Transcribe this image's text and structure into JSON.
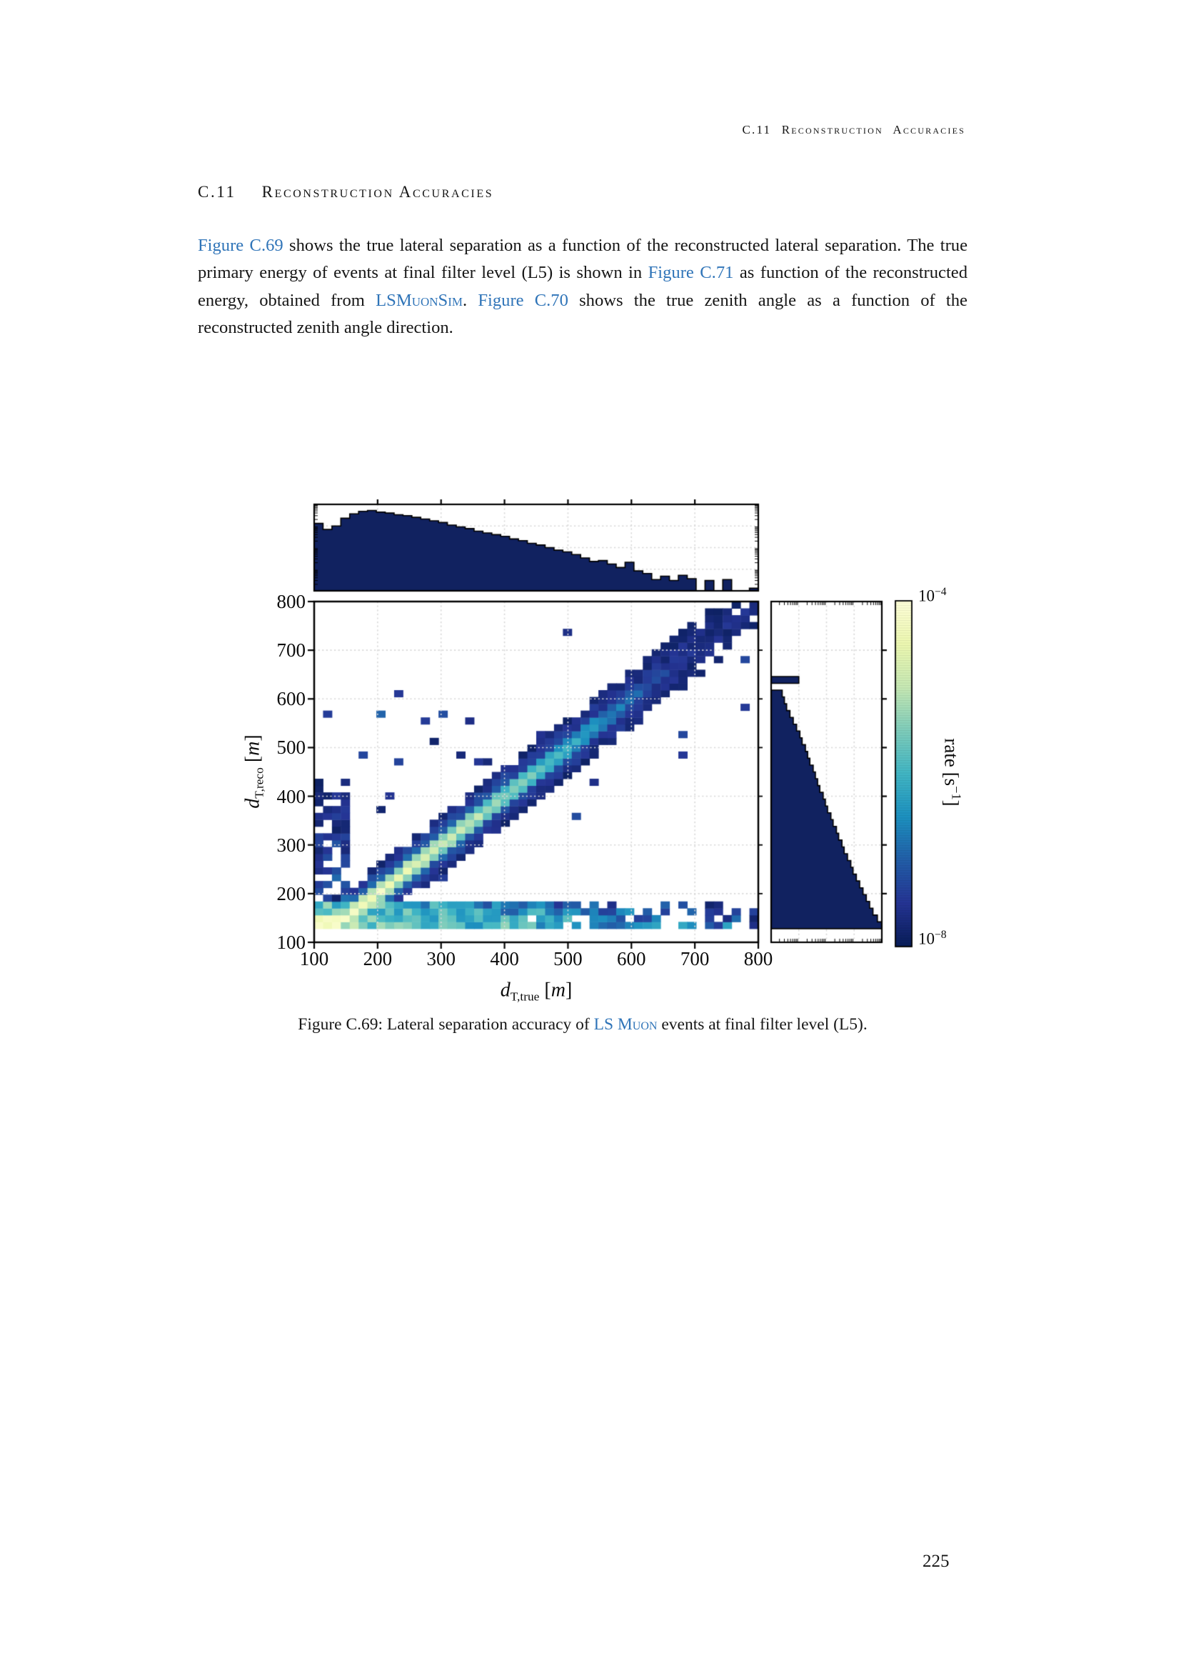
{
  "page": {
    "number": "225"
  },
  "running_header": {
    "text": "C.11 Reconstruction Accuracies"
  },
  "heading": {
    "number": "C.11",
    "title": "Reconstruction Accuracies"
  },
  "paragraph": {
    "segments": [
      {
        "text": "Figure C.69",
        "link": true,
        "smallcaps": false
      },
      {
        "text": " shows the true lateral separation as a function of the reconstructed lateral separation. The true primary energy of events at final filter level (L5) is shown in ",
        "link": false,
        "smallcaps": false
      },
      {
        "text": "Figure C.71",
        "link": true,
        "smallcaps": false
      },
      {
        "text": " as function of the reconstructed energy, obtained from ",
        "link": false,
        "smallcaps": false
      },
      {
        "text": "LSMuonSim",
        "link": true,
        "smallcaps": true
      },
      {
        "text": ". ",
        "link": false,
        "smallcaps": false
      },
      {
        "text": "Figure C.70",
        "link": true,
        "smallcaps": false
      },
      {
        "text": " shows the true zenith angle as a function of the reconstructed zenith angle direction.",
        "link": false,
        "smallcaps": false
      }
    ]
  },
  "caption": {
    "segments": [
      {
        "text": "Figure C.69: Lateral separation accuracy of ",
        "link": false,
        "smallcaps": false
      },
      {
        "text": "LS Muon",
        "link": true,
        "smallcaps": true
      },
      {
        "text": " events at final filter level (L5).",
        "link": false,
        "smallcaps": false
      }
    ]
  },
  "figure": {
    "y_axis_label": {
      "symbol": "d",
      "subscript": "T,reco",
      "unit_open": "[",
      "unit": "m",
      "unit_close": "]"
    },
    "x_axis_label": {
      "symbol": "d",
      "subscript": "T,true",
      "unit_open": "[",
      "unit": "m",
      "unit_close": "]"
    },
    "colorbar_label": {
      "text": "rate",
      "unit_open": "[",
      "unit": "s",
      "exponent": "−1",
      "unit_close": "]"
    },
    "colorbar_max": {
      "base": "10",
      "exponent": "−4"
    },
    "colorbar_min": {
      "base": "10",
      "exponent": "−8"
    }
  },
  "colors": {
    "link_blue": "#2f74b8",
    "text": "#161616",
    "marginal_navy": "#112260",
    "grid_gray": "#d8d8d8"
  },
  "chart_data": {
    "type": "heatmap",
    "title": "",
    "xlabel": "d_T,true [m]",
    "ylabel": "d_T,reco [m]",
    "colorbar_label": "rate [s^-1]",
    "x_range": [
      100,
      800
    ],
    "y_range": [
      100,
      800
    ],
    "x_ticks": [
      100,
      200,
      300,
      400,
      500,
      600,
      700,
      800
    ],
    "y_ticks": [
      100,
      200,
      300,
      400,
      500,
      600,
      700,
      800
    ],
    "bins": 50,
    "bin_width_m": 14,
    "rate_scale": "log10",
    "rate_range": [
      1e-08,
      0.0001
    ],
    "grid": "dotted, on, drawn over heatmap cells",
    "legend_position": "colorbar right",
    "colormap": "YlGnBu reversed (light yellow = high rate 1e-4, dark navy = low rate 1e-8)",
    "colormap_stops": [
      "#081d58",
      "#253494",
      "#225ea8",
      "#1d91c0",
      "#41b6c4",
      "#7fcdbb",
      "#c7e9b4",
      "#edf8b1",
      "#ffffd9"
    ],
    "marginal_fill": "#112260",
    "marginal_scale": "log (minor log ticks on panel edges, dotted decade gridlines)",
    "top_marginal_fractions": [
      0.78,
      0.71,
      0.75,
      0.84,
      0.89,
      0.92,
      0.93,
      0.91,
      0.9,
      0.88,
      0.87,
      0.85,
      0.83,
      0.81,
      0.79,
      0.76,
      0.74,
      0.72,
      0.69,
      0.67,
      0.65,
      0.63,
      0.6,
      0.58,
      0.55,
      0.53,
      0.5,
      0.47,
      0.45,
      0.42,
      0.38,
      0.34,
      0.35,
      0.31,
      0.27,
      0.33,
      0.23,
      0.2,
      0.13,
      0.17,
      0.12,
      0.18,
      0.14,
      0.0,
      0.12,
      0.0,
      0.13,
      0.0,
      0.0,
      0.03
    ],
    "right_marginal_fractions": [
      0.0,
      0.0,
      1.0,
      0.96,
      0.92,
      0.89,
      0.86,
      0.83,
      0.8,
      0.77,
      0.74,
      0.72,
      0.69,
      0.66,
      0.64,
      0.61,
      0.59,
      0.56,
      0.54,
      0.51,
      0.49,
      0.47,
      0.44,
      0.42,
      0.4,
      0.38,
      0.35,
      0.33,
      0.31,
      0.28,
      0.26,
      0.23,
      0.2,
      0.17,
      0.14,
      0.12,
      0.1,
      0.0,
      0.25,
      0.0,
      0.0,
      0.0,
      0.0,
      0.0,
      0.0,
      0.0,
      0.0,
      0.0,
      0.0,
      0.0
    ],
    "heatmap_model": {
      "seed": 1337,
      "band_center": "y = x, clamped to minimum 142 m",
      "band_center_min": 142,
      "sigma0": 15,
      "sigma_slope": 0.032,
      "halo_sigma_factor": 2.6,
      "core_falloff": 1.5,
      "halo_falloff": 0.9,
      "peak_log10": "max(-7.55, -4.0 - 3.9*u^1.3 - 0.9*u^3) with u=(x-100)/700",
      "stripe_y": [
        126,
        178
      ],
      "stripe_log10_at_x100": -5.1,
      "data_floor_m": 133,
      "draw_threshold_log10": -7.9,
      "description": "Diagonal band y≈x: pale-yellow core at small separations (100–250 m) fading through cyan to dark navy above ~500 m; sparse dark floor stripe at y≈130–175 m reaching x≈780 m; scattered isolated dark cells left of and around the band; no cells below y≈133 m."
    }
  }
}
